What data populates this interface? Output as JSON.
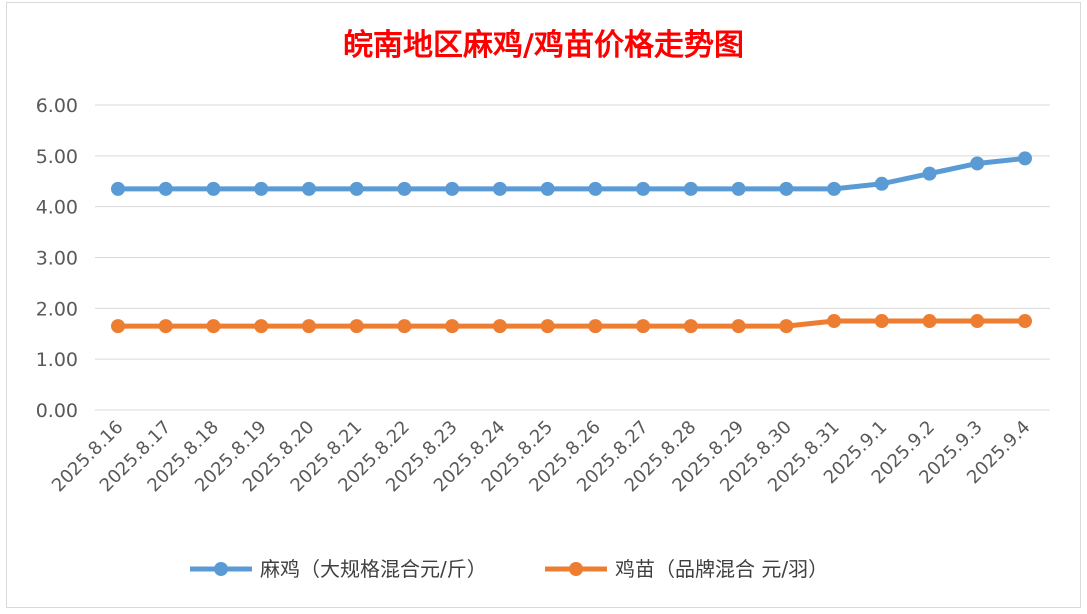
{
  "chart_data": {
    "type": "line",
    "title": "皖南地区麻鸡/鸡苗价格走势图",
    "xlabel": "",
    "ylabel": "",
    "x": [
      "2025.8.16",
      "2025.8.17",
      "2025.8.18",
      "2025.8.19",
      "2025.8.20",
      "2025.8.21",
      "2025.8.22",
      "2025.8.23",
      "2025.8.24",
      "2025.8.25",
      "2025.8.26",
      "2025.8.27",
      "2025.8.28",
      "2025.8.29",
      "2025.8.30",
      "2025.8.31",
      "2025.9.1",
      "2025.9.2",
      "2025.9.3",
      "2025.9.4"
    ],
    "yticks": [
      "0.00",
      "1.00",
      "2.00",
      "3.00",
      "4.00",
      "5.00",
      "6.00"
    ],
    "ylim": [
      0,
      6
    ],
    "grid": true,
    "legend_position": "bottom",
    "series": [
      {
        "name": "麻鸡（大规格混合元/斤）",
        "color": "#5b9bd5",
        "values": [
          4.35,
          4.35,
          4.35,
          4.35,
          4.35,
          4.35,
          4.35,
          4.35,
          4.35,
          4.35,
          4.35,
          4.35,
          4.35,
          4.35,
          4.35,
          4.35,
          4.45,
          4.65,
          4.85,
          4.95
        ]
      },
      {
        "name": "鸡苗（品牌混合 元/羽）",
        "color": "#ed7d31",
        "values": [
          1.65,
          1.65,
          1.65,
          1.65,
          1.65,
          1.65,
          1.65,
          1.65,
          1.65,
          1.65,
          1.65,
          1.65,
          1.65,
          1.65,
          1.65,
          1.75,
          1.75,
          1.75,
          1.75,
          1.75
        ]
      }
    ]
  }
}
